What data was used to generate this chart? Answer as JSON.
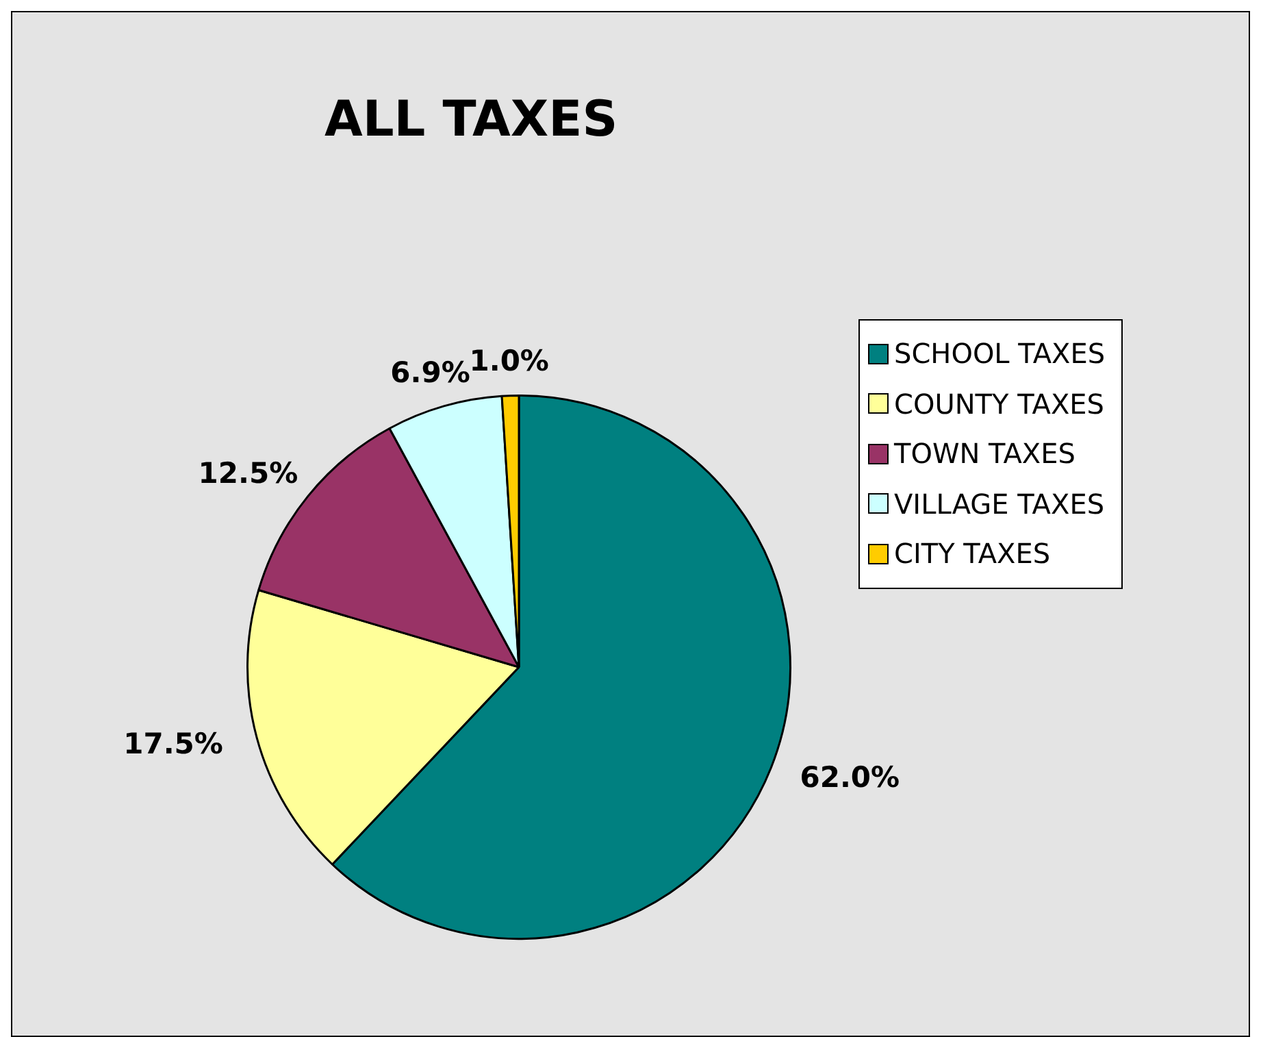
{
  "chart_data": {
    "type": "pie",
    "title": "ALL TAXES",
    "categories": [
      "SCHOOL TAXES",
      "COUNTY TAXES",
      "TOWN TAXES",
      "VILLAGE TAXES",
      "CITY TAXES"
    ],
    "values": [
      62.0,
      17.5,
      12.5,
      6.9,
      1.0
    ],
    "value_labels": [
      "62.0%",
      "17.5%",
      "12.5%",
      "6.9%",
      "1.0%"
    ],
    "colors": [
      "#008080",
      "#ffff99",
      "#993366",
      "#ccffff",
      "#ffcc00"
    ],
    "legend": "right"
  }
}
